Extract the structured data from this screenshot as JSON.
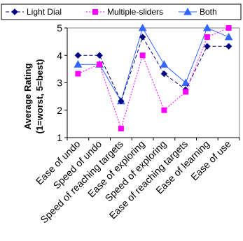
{
  "chart_data": {
    "type": "line",
    "title": "",
    "xlabel": "",
    "ylabel": "Average Rating",
    "ylabel_sub": "(1=worst, 5=best)",
    "ylim": [
      1,
      5
    ],
    "yticks": [
      "1",
      "2",
      "3",
      "4",
      "5"
    ],
    "grid": false,
    "legend_position": "top",
    "categories": [
      "Ease of undo",
      "Speed of undo",
      "Speed of reaching targets",
      "Ease of exploring",
      "Speed of exploring",
      "Ease of reaching targets",
      "Ease of learning",
      "Ease of use"
    ],
    "series": [
      {
        "name": "Light Dial",
        "color": "#000080",
        "marker": "diamond",
        "dash": "dashed",
        "values": [
          4.0,
          4.0,
          2.33,
          4.67,
          3.33,
          2.75,
          4.33,
          4.33
        ]
      },
      {
        "name": "Multiple-sliders",
        "color": "#ff00ff",
        "marker": "square",
        "dash": "dotted",
        "values": [
          3.33,
          3.67,
          1.33,
          4.0,
          2.0,
          2.67,
          4.67,
          5.0
        ]
      },
      {
        "name": "Both",
        "color": "#3366ff",
        "marker": "triangle",
        "dash": "solid",
        "values": [
          3.67,
          3.67,
          2.33,
          5.0,
          3.67,
          3.0,
          5.0,
          4.67
        ]
      }
    ]
  }
}
